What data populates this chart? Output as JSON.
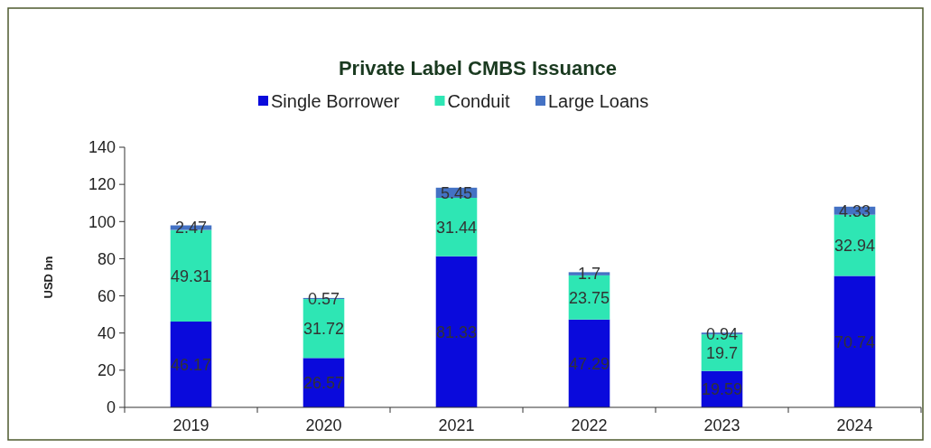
{
  "chart_data": {
    "type": "bar",
    "title": "Private Label CMBS Issuance",
    "ylabel": "USD bn",
    "categories": [
      "2019",
      "2020",
      "2021",
      "2022",
      "2023",
      "2024"
    ],
    "stacked": true,
    "data_labels": true,
    "legend": "top",
    "grid": false,
    "ylim": [
      0,
      140
    ],
    "yticks": [
      0,
      20,
      40,
      60,
      80,
      100,
      120,
      140
    ],
    "series": [
      {
        "name": "Single Borrower",
        "color": "#0a0adc",
        "values": [
          46.17,
          26.57,
          81.33,
          47.29,
          19.59,
          70.74
        ]
      },
      {
        "name": "Conduit",
        "color": "#2ee6b4",
        "values": [
          49.31,
          31.72,
          31.44,
          23.75,
          19.7,
          32.94
        ]
      },
      {
        "name": "Large Loans",
        "color": "#4472c4",
        "values": [
          2.47,
          0.57,
          5.45,
          1.7,
          0.94,
          4.33
        ]
      }
    ]
  }
}
